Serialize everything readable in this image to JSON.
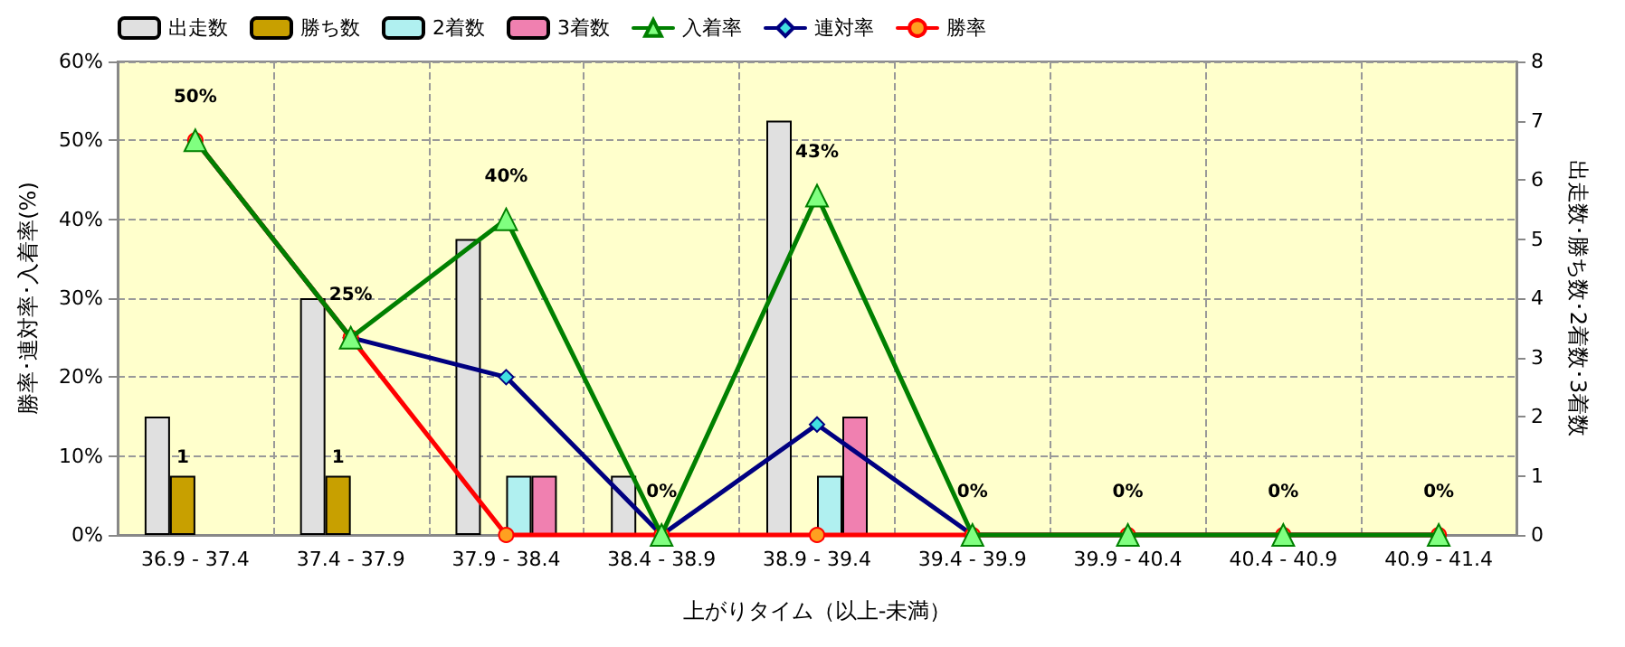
{
  "chart_data": {
    "type": "bar",
    "categories": [
      "36.9 - 37.4",
      "37.4 - 37.9",
      "37.9 - 38.4",
      "38.4 - 38.9",
      "38.9 - 39.4",
      "39.4 - 39.9",
      "39.9 - 40.4",
      "40.4 - 40.9",
      "40.9 - 41.4"
    ],
    "xlabel": "上がりタイム（以上-未満）",
    "ylabel": "勝率･連対率･入着率(%)",
    "y2label": "出走数･勝ち数･2着数･3着数",
    "series": [
      {
        "name": "出走数",
        "axis": "y2",
        "color": "#e0e0e0",
        "values": [
          2,
          4,
          5,
          1,
          7,
          0,
          0,
          0,
          0
        ]
      },
      {
        "name": "勝ち数",
        "axis": "y2",
        "color": "#c8a000",
        "values": [
          1,
          1,
          0,
          0,
          0,
          0,
          0,
          0,
          0
        ],
        "value_labels": [
          "1",
          "1",
          null,
          null,
          null,
          null,
          null,
          null,
          null
        ]
      },
      {
        "name": "2着数",
        "axis": "y2",
        "color": "#b0f0f0",
        "values": [
          0,
          0,
          1,
          0,
          1,
          0,
          0,
          0,
          0
        ]
      },
      {
        "name": "3着数",
        "axis": "y2",
        "color": "#f080b0",
        "values": [
          0,
          0,
          1,
          0,
          2,
          0,
          0,
          0,
          0
        ]
      },
      {
        "name": "入着率",
        "type": "line",
        "axis": "y",
        "color": "#008000",
        "marker": "triangle",
        "values": [
          50,
          25,
          40,
          0,
          43,
          0,
          0,
          0,
          0
        ],
        "value_labels": [
          "50%",
          "25%",
          "40%",
          "0%",
          "43%",
          "0%",
          "0%",
          "0%",
          "0%"
        ]
      },
      {
        "name": "連対率",
        "type": "line",
        "axis": "y",
        "color": "#000080",
        "marker": "diamond",
        "values": [
          50,
          25,
          20,
          0,
          14,
          0,
          0,
          0,
          0
        ]
      },
      {
        "name": "勝率",
        "type": "line",
        "axis": "y",
        "color": "#ff0000",
        "marker": "circle",
        "values": [
          50,
          25,
          0,
          0,
          0,
          0,
          0,
          0,
          0
        ]
      }
    ],
    "ylim": [
      0,
      60
    ],
    "yticks": [
      {
        "value": 0,
        "label": "0%"
      },
      {
        "value": 10,
        "label": "10%"
      },
      {
        "value": 20,
        "label": "20%"
      },
      {
        "value": 30,
        "label": "30%"
      },
      {
        "value": 40,
        "label": "40%"
      },
      {
        "value": 50,
        "label": "50%"
      },
      {
        "value": 60,
        "label": "60%"
      }
    ],
    "y2lim": [
      0,
      8
    ],
    "y2ticks": [
      0,
      1,
      2,
      3,
      4,
      5,
      6,
      7,
      8
    ],
    "grid": true,
    "legend": "top left"
  }
}
